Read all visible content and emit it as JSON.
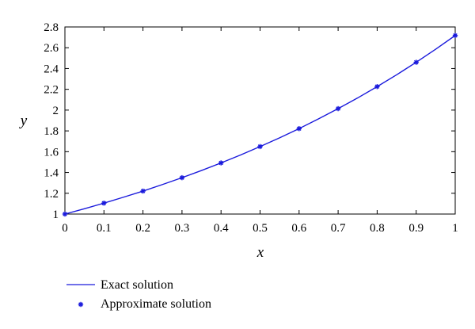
{
  "chart_data": {
    "type": "line",
    "xlabel": "x",
    "ylabel": "y",
    "xlim": [
      0,
      1
    ],
    "ylim": [
      1,
      2.8
    ],
    "xticks": [
      "0",
      "0.1",
      "0.2",
      "0.3",
      "0.4",
      "0.5",
      "0.6",
      "0.7",
      "0.8",
      "0.9",
      "1"
    ],
    "yticks": [
      "1",
      "1.2",
      "1.4",
      "1.6",
      "1.8",
      "2",
      "2.2",
      "2.4",
      "2.6",
      "2.8"
    ],
    "grid": false,
    "legend_position": "bottom-left",
    "series": [
      {
        "name": "Exact solution",
        "style": "line",
        "color": "#1a1adc",
        "x": [
          0,
          0.05,
          0.1,
          0.15,
          0.2,
          0.25,
          0.3,
          0.35,
          0.4,
          0.45,
          0.5,
          0.55,
          0.6,
          0.65,
          0.7,
          0.75,
          0.8,
          0.85,
          0.9,
          0.95,
          1
        ],
        "y": [
          1,
          1.051,
          1.105,
          1.162,
          1.221,
          1.284,
          1.35,
          1.419,
          1.492,
          1.568,
          1.649,
          1.733,
          1.822,
          1.916,
          2.014,
          2.117,
          2.226,
          2.34,
          2.46,
          2.586,
          2.718
        ]
      },
      {
        "name": "Approximate solution",
        "style": "markers",
        "marker": "star",
        "color": "#1a1adc",
        "x": [
          0,
          0.1,
          0.2,
          0.3,
          0.4,
          0.5,
          0.6,
          0.7,
          0.8,
          0.9,
          1
        ],
        "y": [
          1,
          1.105,
          1.221,
          1.35,
          1.492,
          1.649,
          1.822,
          2.014,
          2.226,
          2.46,
          2.718
        ]
      }
    ]
  }
}
